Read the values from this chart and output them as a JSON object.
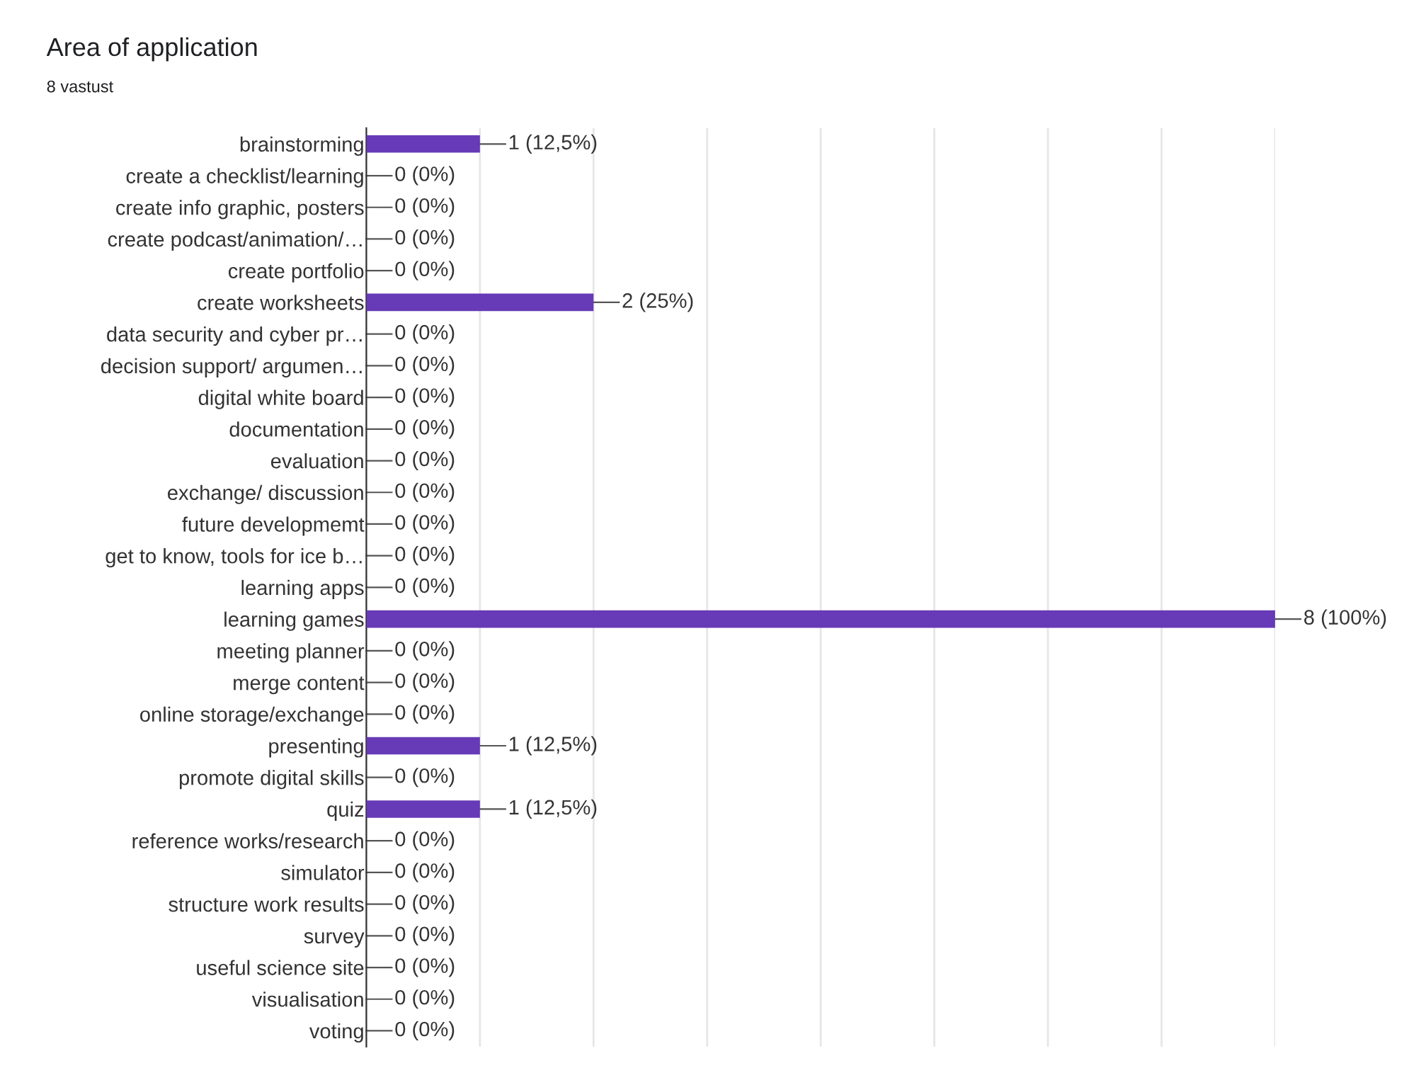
{
  "chart_data": {
    "type": "bar",
    "orientation": "horizontal",
    "title": "Area of application",
    "subtitle": "8 vastust",
    "categories": [
      "brainstorming",
      "create a checklist/learning",
      "create info graphic, posters",
      "create podcast/animation/…",
      "create portfolio",
      "create worksheets",
      "data security and cyber pr…",
      "decision support/ argumen…",
      "digital white board",
      "documentation",
      "evaluation",
      "exchange/ discussion",
      "future developmemt",
      "get to know, tools for ice b…",
      "learning apps",
      "learning games",
      "meeting planner",
      "merge content",
      "online storage/exchange",
      "presenting",
      "promote digital skills",
      "quiz",
      "reference works/research",
      "simulator",
      "structure work results",
      "survey",
      "useful science site",
      "visualisation",
      "voting"
    ],
    "values": [
      1,
      0,
      0,
      0,
      0,
      2,
      0,
      0,
      0,
      0,
      0,
      0,
      0,
      0,
      0,
      8,
      0,
      0,
      0,
      1,
      0,
      1,
      0,
      0,
      0,
      0,
      0,
      0,
      0
    ],
    "value_labels": [
      "1 (12,5%)",
      "0 (0%)",
      "0 (0%)",
      "0 (0%)",
      "0 (0%)",
      "2 (25%)",
      "0 (0%)",
      "0 (0%)",
      "0 (0%)",
      "0 (0%)",
      "0 (0%)",
      "0 (0%)",
      "0 (0%)",
      "0 (0%)",
      "0 (0%)",
      "8 (100%)",
      "0 (0%)",
      "0 (0%)",
      "0 (0%)",
      "1 (12,5%)",
      "0 (0%)",
      "1 (12,5%)",
      "0 (0%)",
      "0 (0%)",
      "0 (0%)",
      "0 (0%)",
      "0 (0%)",
      "0 (0%)",
      "0 (0%)"
    ],
    "color": "#673ab7",
    "xlim": [
      0,
      8
    ],
    "xticks": [
      {
        "value": 0,
        "label": null
      },
      {
        "value": 1,
        "label": null
      },
      {
        "value": 2,
        "label": null
      },
      {
        "value": 3,
        "label": null
      },
      {
        "value": 4,
        "label": null
      },
      {
        "value": 5,
        "label": null
      },
      {
        "value": 6,
        "label": null
      },
      {
        "value": 7,
        "label": null
      },
      {
        "value": 8,
        "label": null
      }
    ],
    "grid": "x",
    "tick_labels": "y"
  }
}
